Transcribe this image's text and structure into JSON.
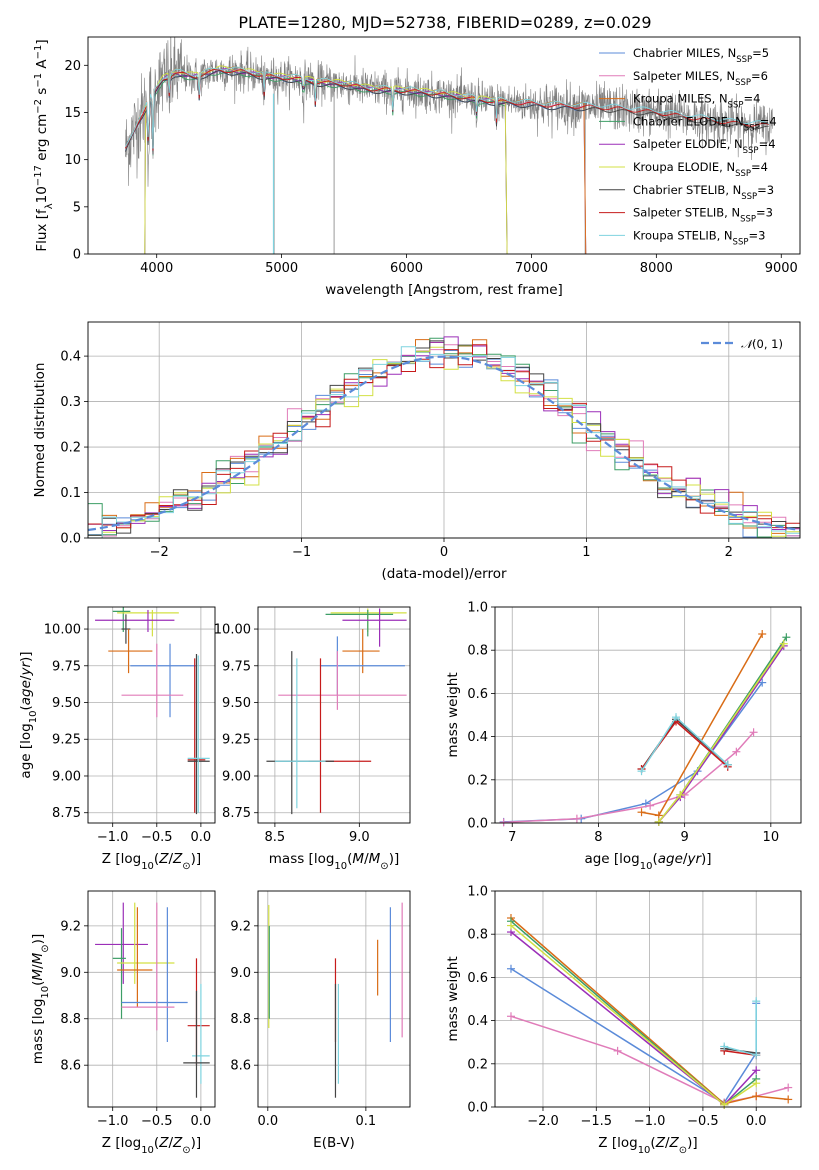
{
  "figure_title": "PLATE=1280, MJD=52738, FIBERID=0289, z=0.029",
  "colors": {
    "Chabrier MILES": "#5b8bd9",
    "Salpeter MILES": "#e07cb9",
    "Kroupa MILES": "#d96c16",
    "Chabrier ELODIE": "#3d9e66",
    "Salpeter ELODIE": "#9b2fb8",
    "Kroupa ELODIE": "#d3e044",
    "Chabrier STELIB": "#444444",
    "Salpeter STELIB": "#c61b1b",
    "Kroupa STELIB": "#7fd3df",
    "data": "#808080"
  },
  "chart_data": [
    {
      "id": "spectrum",
      "type": "line",
      "title": "PLATE=1280, MJD=52738, FIBERID=0289, z=0.029",
      "xlabel": "wavelength [Angstrom, rest frame]",
      "ylabel": "Flux [f_λ 10^-17 erg cm^-2 s^-1 A^-1]",
      "xlim": [
        3450,
        9150
      ],
      "ylim": [
        0,
        23
      ],
      "xticks": [
        4000,
        5000,
        6000,
        7000,
        8000,
        9000
      ],
      "yticks": [
        0,
        5,
        10,
        15,
        20
      ],
      "grid": false,
      "legend_position": "top-right",
      "legend": [
        {
          "label": "Chabrier MILES, N",
          "sub": "SSP",
          "suffix": "=5"
        },
        {
          "label": "Salpeter MILES, N",
          "sub": "SSP",
          "suffix": "=6"
        },
        {
          "label": "Kroupa MILES, N",
          "sub": "SSP",
          "suffix": "=4"
        },
        {
          "label": "Chabrier ELODIE, N",
          "sub": "SSP",
          "suffix": "=4"
        },
        {
          "label": "Salpeter ELODIE, N",
          "sub": "SSP",
          "suffix": "=4"
        },
        {
          "label": "Kroupa ELODIE, N",
          "sub": "SSP",
          "suffix": "=4"
        },
        {
          "label": "Chabrier STELIB, N",
          "sub": "SSP",
          "suffix": "=3"
        },
        {
          "label": "Salpeter STELIB, N",
          "sub": "SSP",
          "suffix": "=3"
        },
        {
          "label": "Kroupa STELIB, N",
          "sub": "SSP",
          "suffix": "=3"
        }
      ],
      "continuum": {
        "x": [
          3750,
          3850,
          3950,
          4050,
          4150,
          4300,
          4500,
          4700,
          4900,
          5100,
          5300,
          5500,
          5700,
          6000,
          6300,
          6600,
          6900,
          7200,
          7450,
          7700,
          8000,
          8300,
          8600,
          8900
        ],
        "y": [
          11,
          14,
          16.5,
          18.5,
          19.2,
          18.8,
          19.5,
          19.3,
          18.8,
          18.6,
          18.2,
          18.0,
          17.5,
          17.3,
          16.9,
          16.3,
          16.0,
          15.7,
          15.6,
          15.4,
          15.0,
          14.4,
          13.9,
          13.6
        ]
      },
      "data_range": [
        3750,
        8930
      ],
      "model_ranges": [
        {
          "name": "Chabrier MILES",
          "x0": 3750,
          "x1": 7420
        },
        {
          "name": "Salpeter MILES",
          "x0": 3750,
          "x1": 7420
        },
        {
          "name": "Kroupa MILES",
          "x0": 3750,
          "x1": 7420
        },
        {
          "name": "Chabrier ELODIE",
          "x0": 3910,
          "x1": 6790
        },
        {
          "name": "Salpeter ELODIE",
          "x0": 3910,
          "x1": 6790
        },
        {
          "name": "Kroupa ELODIE",
          "x0": 3910,
          "x1": 6790
        },
        {
          "name": "Chabrier STELIB",
          "x0": 3750,
          "x1": 8900
        },
        {
          "name": "Salpeter STELIB",
          "x0": 3750,
          "x1": 8900
        },
        {
          "name": "Kroupa STELIB",
          "x0": 3750,
          "x1": 8900
        }
      ]
    },
    {
      "id": "residuals",
      "type": "line",
      "xlabel": "(data-model)/error",
      "ylabel": "Normed distribution",
      "xlim": [
        -2.5,
        2.5
      ],
      "ylim": [
        0,
        0.475
      ],
      "xticks": [
        -2,
        -1,
        0,
        1,
        2
      ],
      "yticks": [
        0.0,
        0.1,
        0.2,
        0.3,
        0.4
      ],
      "grid": true,
      "legend_position": "top-right",
      "legend": "N(0,1)",
      "bin_width": 0.1,
      "series": "histograms of normalized residuals, one per model, following a unit Gaussian"
    },
    {
      "id": "age_Z",
      "type": "scatter",
      "xlabel": "Z [log10(Z/Z⊙)]",
      "ylabel": "age  [log10(age/yr)]",
      "xlim": [
        -1.28,
        0.16
      ],
      "ylim": [
        8.68,
        10.15
      ],
      "xticks": [
        -1.0,
        -0.5,
        0.0
      ],
      "yticks": [
        8.75,
        9.0,
        9.25,
        9.5,
        9.75,
        10.0
      ],
      "grid": true,
      "crosses": [
        {
          "s": "Chabrier ELODIE",
          "x": -0.88,
          "y": 10.12,
          "xl": -1.0,
          "xh": -0.8,
          "yl": 9.98,
          "yh": 10.15
        },
        {
          "s": "Kroupa ELODIE",
          "x": -0.55,
          "y": 10.11,
          "xl": -0.95,
          "xh": -0.25,
          "yl": 9.95,
          "yh": 10.13
        },
        {
          "s": "Salpeter ELODIE",
          "x": -0.6,
          "y": 10.06,
          "xl": -1.2,
          "xh": -0.3,
          "yl": 9.98,
          "yh": 10.13
        },
        {
          "s": "Chabrier STELIB",
          "x": -0.85,
          "y": 10.0,
          "xl": -0.9,
          "xh": -0.8,
          "yl": 9.9,
          "yh": 10.1
        },
        {
          "s": "Kroupa MILES",
          "x": -0.82,
          "y": 9.85,
          "xl": -1.05,
          "xh": -0.55,
          "yl": 9.7,
          "yh": 10.0
        },
        {
          "s": "Chabrier MILES",
          "x": -0.35,
          "y": 9.75,
          "xl": -0.8,
          "xh": -0.05,
          "yl": 9.4,
          "yh": 9.9
        },
        {
          "s": "Salpeter MILES",
          "x": -0.5,
          "y": 9.55,
          "xl": -0.9,
          "xh": -0.2,
          "yl": 9.4,
          "yh": 9.9
        },
        {
          "s": "Salpeter STELIB",
          "x": -0.07,
          "y": 9.11,
          "xl": -0.15,
          "xh": 0.05,
          "yl": 8.75,
          "yh": 9.8
        },
        {
          "s": "Chabrier STELIB",
          "x": -0.05,
          "y": 9.1,
          "xl": -0.15,
          "xh": 0.1,
          "yl": 8.74,
          "yh": 9.83
        },
        {
          "s": "Kroupa STELIB",
          "x": -0.03,
          "y": 9.12,
          "xl": -0.15,
          "xh": 0.1,
          "yl": 8.75,
          "yh": 9.82
        }
      ]
    },
    {
      "id": "age_mass",
      "type": "scatter",
      "xlabel": "mass [log10(M/M⊙)]",
      "ylabel": "",
      "xlim": [
        8.4,
        9.3
      ],
      "ylim": [
        8.68,
        10.15
      ],
      "xticks": [
        8.5,
        9.0
      ],
      "yticks": [
        8.75,
        9.0,
        9.25,
        9.5,
        9.75,
        10.0
      ],
      "grid": true,
      "crosses": [
        {
          "s": "Kroupa ELODIE",
          "x": 9.05,
          "y": 10.11,
          "xl": 8.83,
          "xh": 9.28,
          "yl": 9.98,
          "yh": 10.14
        },
        {
          "s": "Chabrier ELODIE",
          "x": 9.05,
          "y": 10.1,
          "xl": 8.8,
          "xh": 9.2,
          "yl": 9.95,
          "yh": 10.13
        },
        {
          "s": "Salpeter ELODIE",
          "x": 9.12,
          "y": 10.06,
          "xl": 8.9,
          "xh": 9.28,
          "yl": 9.88,
          "yh": 10.14
        },
        {
          "s": "Kroupa MILES",
          "x": 9.02,
          "y": 9.85,
          "xl": 8.9,
          "xh": 9.12,
          "yl": 9.7,
          "yh": 10.0
        },
        {
          "s": "Chabrier MILES",
          "x": 8.87,
          "y": 9.75,
          "xl": 8.77,
          "xh": 9.27,
          "yl": 9.55,
          "yh": 9.95
        },
        {
          "s": "Salpeter MILES",
          "x": 8.87,
          "y": 9.55,
          "xl": 8.52,
          "xh": 9.28,
          "yl": 9.45,
          "yh": 9.85
        },
        {
          "s": "Salpeter STELIB",
          "x": 8.77,
          "y": 9.1,
          "xl": 8.7,
          "xh": 9.07,
          "yl": 8.75,
          "yh": 9.8
        },
        {
          "s": "Chabrier STELIB",
          "x": 8.6,
          "y": 9.1,
          "xl": 8.45,
          "xh": 8.85,
          "yl": 8.74,
          "yh": 9.85
        },
        {
          "s": "Kroupa STELIB",
          "x": 8.63,
          "y": 9.1,
          "xl": 8.5,
          "xh": 8.8,
          "yl": 8.78,
          "yh": 9.8
        }
      ]
    },
    {
      "id": "weight_age",
      "type": "line",
      "xlabel": "age  [log10(age/yr)]",
      "ylabel": "mass weight",
      "xlim": [
        6.8,
        10.35
      ],
      "ylim": [
        0,
        1
      ],
      "xticks": [
        7,
        8,
        9,
        10
      ],
      "yticks": [
        0.0,
        0.2,
        0.4,
        0.6,
        0.8,
        1.0
      ],
      "grid": true,
      "series": [
        {
          "name": "Chabrier MILES",
          "x": [
            6.9,
            7.8,
            8.55,
            9.15,
            9.9
          ],
          "y": [
            0.005,
            0.02,
            0.09,
            0.24,
            0.65
          ]
        },
        {
          "name": "Salpeter MILES",
          "x": [
            6.9,
            7.75,
            8.6,
            9.0,
            9.6,
            9.8
          ],
          "y": [
            0.003,
            0.02,
            0.08,
            0.13,
            0.33,
            0.42
          ]
        },
        {
          "name": "Kroupa MILES",
          "x": [
            8.5,
            8.7,
            9.9
          ],
          "y": [
            0.05,
            0.035,
            0.875
          ]
        },
        {
          "name": "Chabrier ELODIE",
          "x": [
            8.7,
            8.95,
            10.18
          ],
          "y": [
            0.005,
            0.13,
            0.86
          ]
        },
        {
          "name": "Salpeter ELODIE",
          "x": [
            8.7,
            8.95,
            10.15
          ],
          "y": [
            0.005,
            0.12,
            0.82
          ]
        },
        {
          "name": "Kroupa ELODIE",
          "x": [
            8.7,
            8.95,
            10.15
          ],
          "y": [
            0.005,
            0.13,
            0.83
          ]
        },
        {
          "name": "Chabrier STELIB",
          "x": [
            8.5,
            8.9,
            9.5
          ],
          "y": [
            0.25,
            0.48,
            0.27
          ]
        },
        {
          "name": "Salpeter STELIB",
          "x": [
            8.5,
            8.9,
            9.5
          ],
          "y": [
            0.25,
            0.47,
            0.26
          ]
        },
        {
          "name": "Kroupa STELIB",
          "x": [
            8.5,
            8.9,
            9.5
          ],
          "y": [
            0.24,
            0.49,
            0.27
          ]
        }
      ]
    },
    {
      "id": "mass_Z",
      "type": "scatter",
      "xlabel": "Z [log10(Z/Z⊙)]",
      "ylabel": "mass [log10(M/M⊙)]",
      "xlim": [
        -1.28,
        0.16
      ],
      "ylim": [
        8.42,
        9.35
      ],
      "xticks": [
        -1.0,
        -0.5,
        0.0
      ],
      "yticks": [
        8.6,
        8.8,
        9.0,
        9.2
      ],
      "grid": true,
      "crosses": [
        {
          "s": "Salpeter ELODIE",
          "x": -0.88,
          "y": 9.12,
          "xl": -1.2,
          "xh": -0.6,
          "yl": 8.95,
          "yh": 9.3
        },
        {
          "s": "Chabrier ELODIE",
          "x": -0.9,
          "y": 9.06,
          "xl": -1.0,
          "xh": -0.85,
          "yl": 8.8,
          "yh": 9.19
        },
        {
          "s": "Kroupa ELODIE",
          "x": -0.75,
          "y": 9.04,
          "xl": -0.95,
          "xh": -0.3,
          "yl": 8.95,
          "yh": 9.3
        },
        {
          "s": "Kroupa MILES",
          "x": -0.72,
          "y": 9.01,
          "xl": -0.95,
          "xh": -0.55,
          "yl": 8.85,
          "yh": 9.28
        },
        {
          "s": "Chabrier MILES",
          "x": -0.38,
          "y": 8.87,
          "xl": -0.9,
          "xh": -0.15,
          "yl": 8.7,
          "yh": 9.28
        },
        {
          "s": "Salpeter MILES",
          "x": -0.5,
          "y": 8.85,
          "xl": -0.9,
          "xh": -0.3,
          "yl": 8.75,
          "yh": 9.3
        },
        {
          "s": "Salpeter STELIB",
          "x": -0.05,
          "y": 8.77,
          "xl": -0.15,
          "xh": 0.1,
          "yl": 8.6,
          "yh": 9.06
        },
        {
          "s": "Kroupa STELIB",
          "x": 0.0,
          "y": 8.64,
          "xl": -0.1,
          "xh": 0.1,
          "yl": 8.52,
          "yh": 8.95
        },
        {
          "s": "Chabrier STELIB",
          "x": -0.05,
          "y": 8.61,
          "xl": -0.2,
          "xh": 0.1,
          "yl": 8.46,
          "yh": 8.92
        }
      ]
    },
    {
      "id": "mass_EBV",
      "type": "scatter",
      "xlabel": "E(B-V)",
      "ylabel": "",
      "xlim": [
        -0.01,
        0.145
      ],
      "ylim": [
        8.42,
        9.35
      ],
      "xticks": [
        0.0,
        0.1
      ],
      "yticks": [
        8.6,
        8.8,
        9.0,
        9.2
      ],
      "grid": true,
      "crosses": [
        {
          "s": "Kroupa ELODIE",
          "x": 0.001,
          "y": 9.0,
          "yl": 8.76,
          "yh": 9.29
        },
        {
          "s": "Chabrier ELODIE",
          "x": 0.0015,
          "y": 9.0,
          "yl": 8.8,
          "yh": 9.2
        },
        {
          "s": "Salpeter STELIB",
          "x": 0.069,
          "y": 8.9,
          "yl": 8.7,
          "yh": 9.06
        },
        {
          "s": "Chabrier STELIB",
          "x": 0.069,
          "y": 8.8,
          "yl": 8.46,
          "yh": 8.95
        },
        {
          "s": "Kroupa STELIB",
          "x": 0.072,
          "y": 8.7,
          "yl": 8.52,
          "yh": 8.95
        },
        {
          "s": "Kroupa MILES",
          "x": 0.112,
          "y": 9.0,
          "yl": 8.9,
          "yh": 9.14
        },
        {
          "s": "Chabrier MILES",
          "x": 0.125,
          "y": 8.95,
          "yl": 8.7,
          "yh": 9.28
        },
        {
          "s": "Salpeter MILES",
          "x": 0.137,
          "y": 9.0,
          "yl": 8.72,
          "yh": 9.3
        }
      ]
    },
    {
      "id": "weight_Z",
      "type": "line",
      "xlabel": "Z [log10(Z/Z⊙)]",
      "ylabel": "mass weight",
      "xlim": [
        -2.45,
        0.42
      ],
      "ylim": [
        0,
        1
      ],
      "xticks": [
        -2.0,
        -1.5,
        -1.0,
        -0.5,
        0.0
      ],
      "yticks": [
        0.0,
        0.2,
        0.4,
        0.6,
        0.8,
        1.0
      ],
      "grid": true,
      "series": [
        {
          "name": "Chabrier MILES",
          "x": [
            -2.3,
            -0.3,
            0.0,
            0.0
          ],
          "y": [
            0.64,
            0.02,
            0.25,
            0.48
          ]
        },
        {
          "name": "Salpeter MILES",
          "x": [
            -2.3,
            -1.3,
            -0.3,
            0.0,
            0.3
          ],
          "y": [
            0.42,
            0.26,
            0.02,
            0.05,
            0.09
          ]
        },
        {
          "name": "Kroupa MILES",
          "x": [
            -2.3,
            -0.3,
            0.0,
            0.3
          ],
          "y": [
            0.875,
            0.015,
            0.05,
            0.035
          ]
        },
        {
          "name": "Chabrier ELODIE",
          "x": [
            -2.3,
            -0.3,
            0.0
          ],
          "y": [
            0.86,
            0.01,
            0.13
          ]
        },
        {
          "name": "Salpeter ELODIE",
          "x": [
            -2.3,
            -0.3,
            0.0
          ],
          "y": [
            0.81,
            0.01,
            0.17
          ]
        },
        {
          "name": "Kroupa ELODIE",
          "x": [
            -2.3,
            -0.3,
            0.0
          ],
          "y": [
            0.84,
            0.01,
            0.11
          ]
        },
        {
          "name": "Chabrier STELIB",
          "x": [
            -0.3,
            0.0
          ],
          "y": [
            0.27,
            0.25
          ]
        },
        {
          "name": "Salpeter STELIB",
          "x": [
            -0.3,
            0.0
          ],
          "y": [
            0.26,
            0.24
          ]
        },
        {
          "name": "Kroupa STELIB",
          "x": [
            -0.3,
            0.0,
            0.0
          ],
          "y": [
            0.28,
            0.24,
            0.49
          ]
        }
      ]
    }
  ]
}
